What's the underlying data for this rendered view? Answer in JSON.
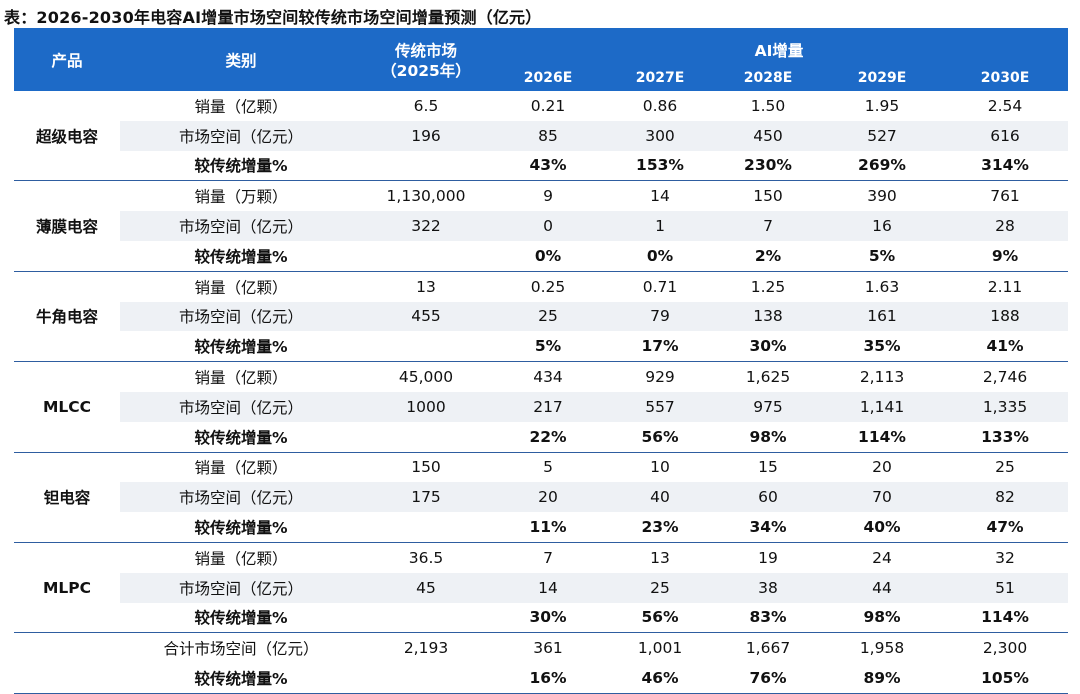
{
  "title": "表：2026-2030年电容AI增量市场空间较传统市场空间增量预测（亿元）",
  "header": {
    "product": "产品",
    "category": "类别",
    "traditional_line1": "传统市场",
    "traditional_line2": "（2025年）",
    "ai": "AI增量",
    "years": [
      "2026E",
      "2027E",
      "2028E",
      "2029E",
      "2030E"
    ]
  },
  "groups": [
    {
      "product": "超级电容",
      "rows": [
        {
          "label": "销量（亿颗）",
          "trad": "6.5",
          "vals": [
            "0.21",
            "0.86",
            "1.50",
            "1.95",
            "2.54"
          ]
        },
        {
          "label": "市场空间（亿元）",
          "trad": "196",
          "vals": [
            "85",
            "300",
            "450",
            "527",
            "616"
          ]
        },
        {
          "label": "较传统增量%",
          "trad": "",
          "vals": [
            "43%",
            "153%",
            "230%",
            "269%",
            "314%"
          ]
        }
      ]
    },
    {
      "product": "薄膜电容",
      "rows": [
        {
          "label": "销量（万颗）",
          "trad": "1,130,000",
          "vals": [
            "9",
            "14",
            "150",
            "390",
            "761"
          ]
        },
        {
          "label": "市场空间（亿元）",
          "trad": "322",
          "vals": [
            "0",
            "1",
            "7",
            "16",
            "28"
          ]
        },
        {
          "label": "较传统增量%",
          "trad": "",
          "vals": [
            "0%",
            "0%",
            "2%",
            "5%",
            "9%"
          ]
        }
      ]
    },
    {
      "product": "牛角电容",
      "rows": [
        {
          "label": "销量（亿颗）",
          "trad": "13",
          "vals": [
            "0.25",
            "0.71",
            "1.25",
            "1.63",
            "2.11"
          ]
        },
        {
          "label": "市场空间（亿元）",
          "trad": "455",
          "vals": [
            "25",
            "79",
            "138",
            "161",
            "188"
          ]
        },
        {
          "label": "较传统增量%",
          "trad": "",
          "vals": [
            "5%",
            "17%",
            "30%",
            "35%",
            "41%"
          ]
        }
      ]
    },
    {
      "product": "MLCC",
      "rows": [
        {
          "label": "销量（亿颗）",
          "trad": "45,000",
          "vals": [
            "434",
            "929",
            "1,625",
            "2,113",
            "2,746"
          ]
        },
        {
          "label": "市场空间（亿元）",
          "trad": "1000",
          "vals": [
            "217",
            "557",
            "975",
            "1,141",
            "1,335"
          ]
        },
        {
          "label": "较传统增量%",
          "trad": "",
          "vals": [
            "22%",
            "56%",
            "98%",
            "114%",
            "133%"
          ]
        }
      ]
    },
    {
      "product": "钽电容",
      "rows": [
        {
          "label": "销量（亿颗）",
          "trad": "150",
          "vals": [
            "5",
            "10",
            "15",
            "20",
            "25"
          ]
        },
        {
          "label": "市场空间（亿元）",
          "trad": "175",
          "vals": [
            "20",
            "40",
            "60",
            "70",
            "82"
          ]
        },
        {
          "label": "较传统增量%",
          "trad": "",
          "vals": [
            "11%",
            "23%",
            "34%",
            "40%",
            "47%"
          ]
        }
      ]
    },
    {
      "product": "MLPC",
      "rows": [
        {
          "label": "销量（亿颗）",
          "trad": "36.5",
          "vals": [
            "7",
            "13",
            "19",
            "24",
            "32"
          ]
        },
        {
          "label": "市场空间（亿元）",
          "trad": "45",
          "vals": [
            "14",
            "25",
            "38",
            "44",
            "51"
          ]
        },
        {
          "label": "较传统增量%",
          "trad": "",
          "vals": [
            "30%",
            "56%",
            "83%",
            "98%",
            "114%"
          ]
        }
      ]
    }
  ],
  "totals": [
    {
      "label": "合计市场空间（亿元）",
      "trad": "2,193",
      "vals": [
        "361",
        "1,001",
        "1,667",
        "1,958",
        "2,300"
      ]
    },
    {
      "label": "较传统增量%",
      "trad": "",
      "vals": [
        "16%",
        "46%",
        "76%",
        "89%",
        "105%"
      ]
    }
  ]
}
